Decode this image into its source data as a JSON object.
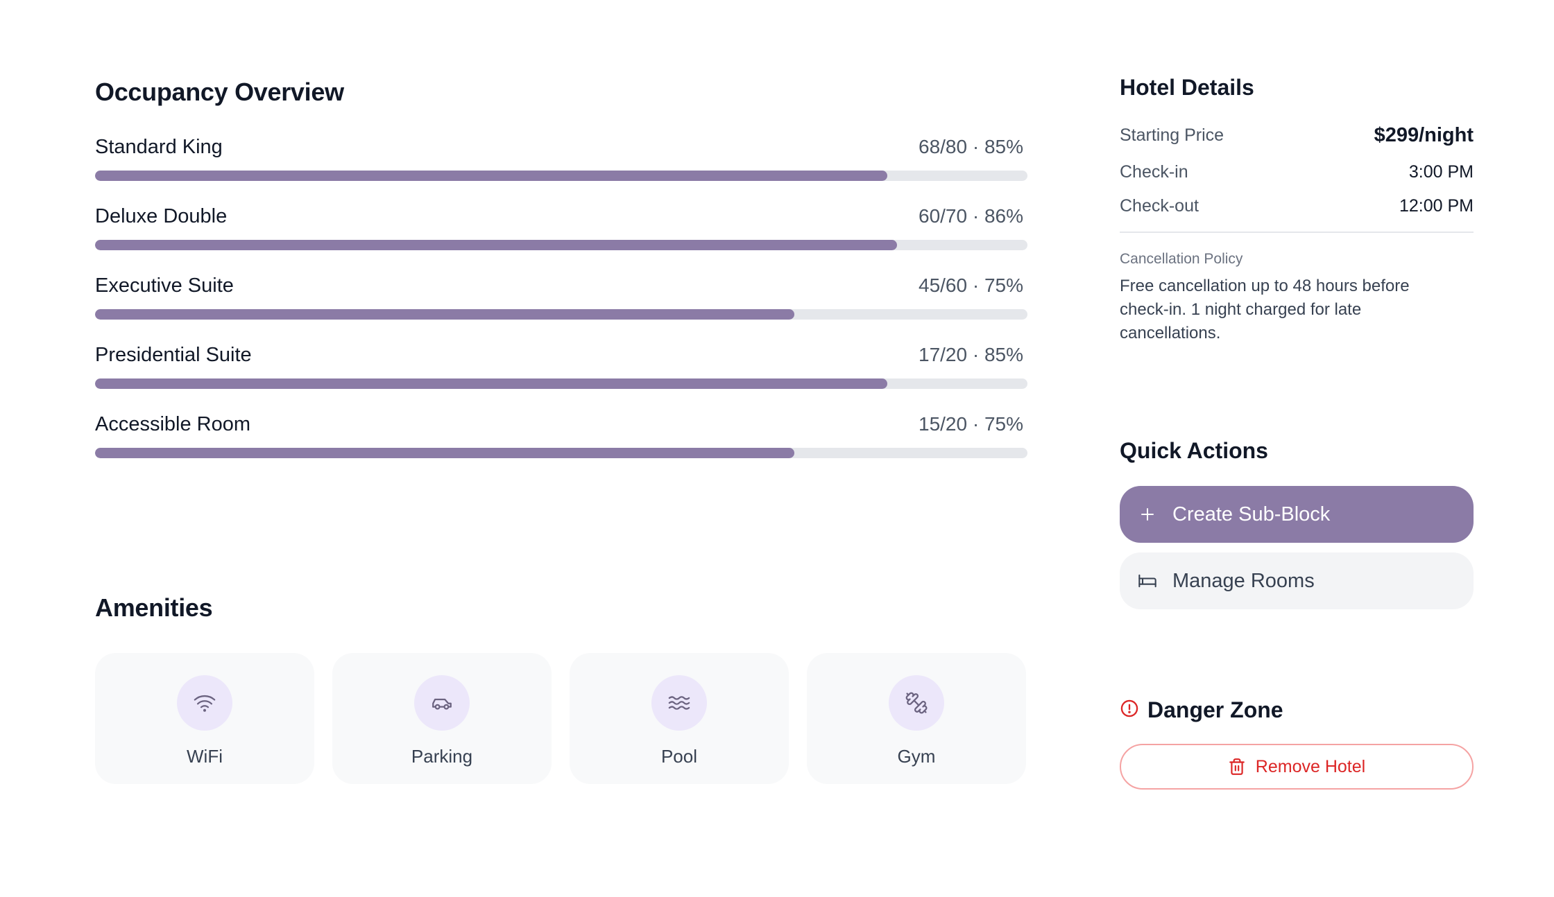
{
  "occupancy": {
    "title": "Occupancy Overview",
    "accent_color": "#8b7ba6",
    "rooms": [
      {
        "name": "Standard King",
        "stat": "68/80 · 85%",
        "fraction": 0.85
      },
      {
        "name": "Deluxe Double",
        "stat": "60/70 · 86%",
        "fraction": 0.86
      },
      {
        "name": "Executive Suite",
        "stat": "45/60 · 75%",
        "fraction": 0.75
      },
      {
        "name": "Presidential Suite",
        "stat": "17/20 · 85%",
        "fraction": 0.85
      },
      {
        "name": "Accessible Room",
        "stat": "15/20 · 75%",
        "fraction": 0.75
      }
    ]
  },
  "amenities": {
    "title": "Amenities",
    "items": [
      {
        "label": "WiFi",
        "icon": "wifi-icon"
      },
      {
        "label": "Parking",
        "icon": "car-icon"
      },
      {
        "label": "Pool",
        "icon": "waves-icon"
      },
      {
        "label": "Gym",
        "icon": "dumbbell-icon"
      }
    ]
  },
  "details": {
    "title": "Hotel Details",
    "starting_price_label": "Starting Price",
    "starting_price_value": "$299/night",
    "checkin_label": "Check-in",
    "checkin_value": "3:00 PM",
    "checkout_label": "Check-out",
    "checkout_value": "12:00 PM",
    "policy_label": "Cancellation Policy",
    "policy_text": "Free cancellation up to 48 hours before check-in. 1 night charged for late cancellations."
  },
  "actions": {
    "title": "Quick Actions",
    "create_label": "Create Sub-Block",
    "create_icon": "plus-icon",
    "manage_label": "Manage Rooms",
    "manage_icon": "bed-icon"
  },
  "danger": {
    "title": "Danger Zone",
    "icon": "alert-circle-icon",
    "remove_label": "Remove Hotel",
    "remove_icon": "trash-icon",
    "color": "#dc2626"
  }
}
